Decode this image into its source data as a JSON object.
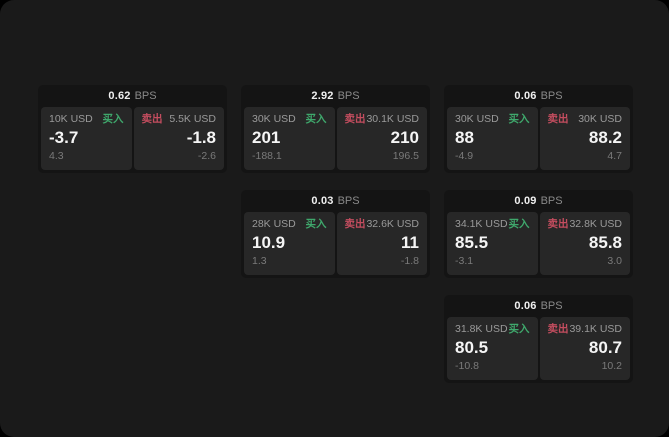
{
  "colors": {
    "buy_green": "#3fa86c",
    "sell_red": "#c44d5f",
    "background": "#1a1a1a",
    "card_background": "#141414",
    "panel_background": "#272727"
  },
  "cards": [
    {
      "bps_value": "0.62",
      "bps_unit": "BPS",
      "buy": {
        "side_label": "买入",
        "notional": "10K USD",
        "price": "-3.7",
        "sub_value": "4.3"
      },
      "sell": {
        "side_label": "卖出",
        "notional": "5.5K USD",
        "price": "-1.8",
        "sub_value": "-2.6"
      }
    },
    {
      "bps_value": "2.92",
      "bps_unit": "BPS",
      "buy": {
        "side_label": "买入",
        "notional": "30K USD",
        "price": "201",
        "sub_value": "-188.1"
      },
      "sell": {
        "side_label": "卖出",
        "notional": "30.1K USD",
        "price": "210",
        "sub_value": "196.5"
      }
    },
    {
      "bps_value": "0.06",
      "bps_unit": "BPS",
      "buy": {
        "side_label": "买入",
        "notional": "30K USD",
        "price": "88",
        "sub_value": "-4.9"
      },
      "sell": {
        "side_label": "卖出",
        "notional": "30K USD",
        "price": "88.2",
        "sub_value": "4.7"
      }
    },
    {
      "bps_value": "0.03",
      "bps_unit": "BPS",
      "buy": {
        "side_label": "买入",
        "notional": "28K USD",
        "price": "10.9",
        "sub_value": "1.3"
      },
      "sell": {
        "side_label": "卖出",
        "notional": "32.6K USD",
        "price": "11",
        "sub_value": "-1.8"
      }
    },
    {
      "bps_value": "0.09",
      "bps_unit": "BPS",
      "buy": {
        "side_label": "买入",
        "notional": "34.1K USD",
        "price": "85.5",
        "sub_value": "-3.1"
      },
      "sell": {
        "side_label": "卖出",
        "notional": "32.8K USD",
        "price": "85.8",
        "sub_value": "3.0"
      }
    },
    {
      "bps_value": "0.06",
      "bps_unit": "BPS",
      "buy": {
        "side_label": "买入",
        "notional": "31.8K USD",
        "price": "80.5",
        "sub_value": "-10.8"
      },
      "sell": {
        "side_label": "卖出",
        "notional": "39.1K USD",
        "price": "80.7",
        "sub_value": "10.2"
      }
    }
  ]
}
